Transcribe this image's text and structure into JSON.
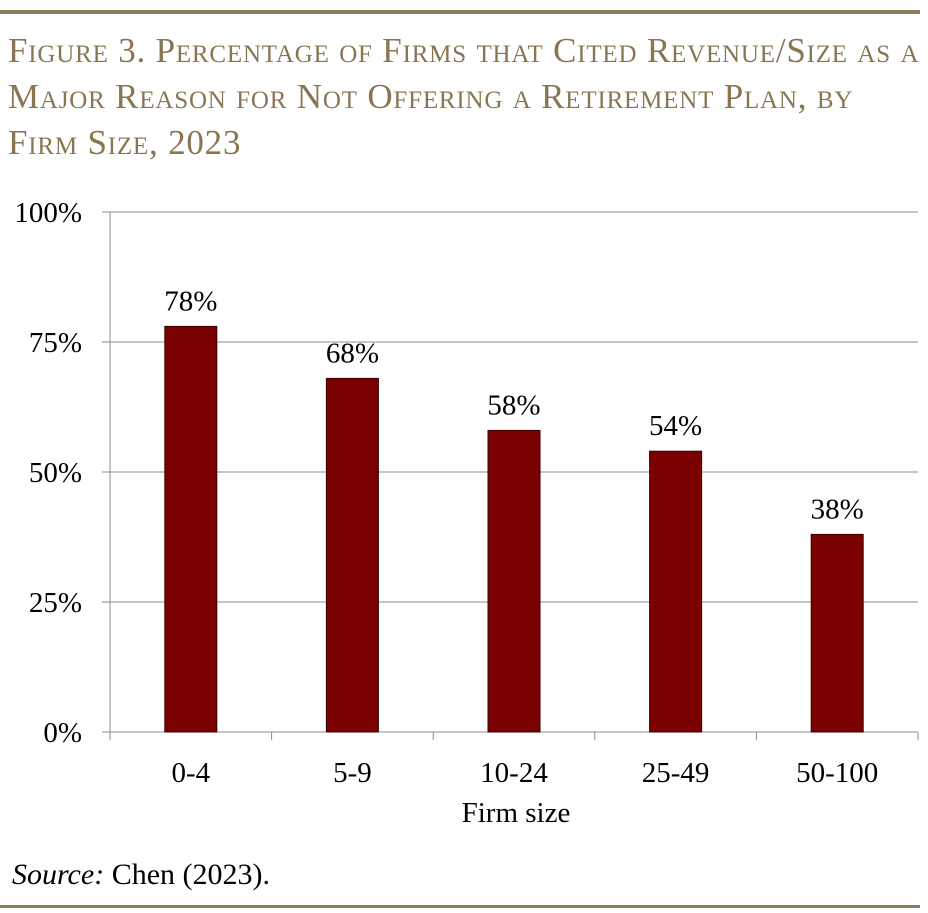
{
  "figure": {
    "title": "Figure 3. Percentage of Firms that Cited Revenue/Size as a Major Reason for Not Offering a Retirement Plan, by Firm Size, 2023",
    "source_label": "Source:",
    "source_text": " Chen (2023)."
  },
  "colors": {
    "bar": "#7b0000",
    "bar_outline": "#3a0000",
    "accent_rule": "#8c7a5b",
    "title": "#8a7552",
    "grid": "#8c8c8c"
  },
  "chart_data": {
    "type": "bar",
    "categories": [
      "0-4",
      "5-9",
      "10-24",
      "25-49",
      "50-100"
    ],
    "values": [
      78,
      68,
      58,
      54,
      38
    ],
    "data_labels": [
      "78%",
      "68%",
      "58%",
      "54%",
      "38%"
    ],
    "xlabel": "Firm size",
    "ylabel": "",
    "ylim": [
      0,
      100
    ],
    "yticks": [
      0,
      25,
      50,
      75,
      100
    ],
    "ytick_labels": [
      "0%",
      "25%",
      "50%",
      "75%",
      "100%"
    ],
    "grid": true,
    "legend": "none"
  }
}
